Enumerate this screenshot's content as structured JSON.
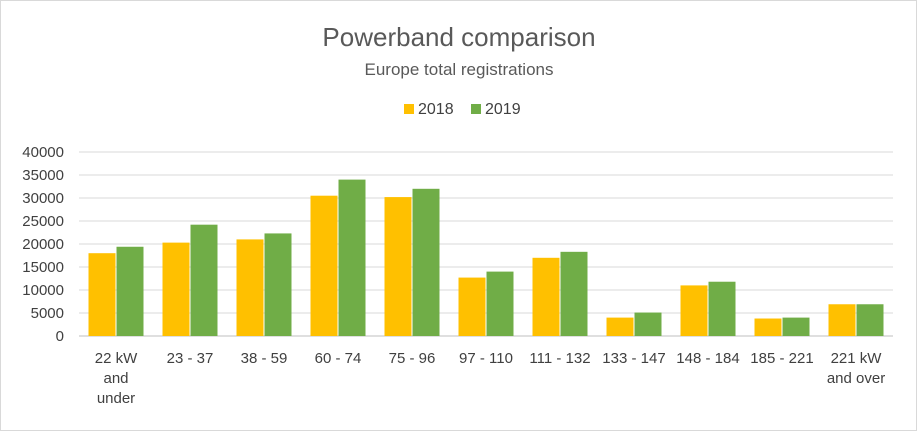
{
  "chart_data": {
    "type": "bar",
    "title": "Powerband comparison",
    "subtitle": "Europe total registrations",
    "xlabel": "",
    "ylabel": "",
    "ylim": [
      0,
      40000
    ],
    "yticks": [
      0,
      5000,
      10000,
      15000,
      20000,
      25000,
      30000,
      35000,
      40000
    ],
    "grid": true,
    "legend_position": "top",
    "categories": [
      [
        "22 kW",
        "and",
        "under"
      ],
      [
        "23 - 37"
      ],
      [
        "38 - 59"
      ],
      [
        "60 - 74"
      ],
      [
        "75 - 96"
      ],
      [
        "97 - 110"
      ],
      [
        "111 - 132"
      ],
      [
        "133 - 147"
      ],
      [
        "148 - 184"
      ],
      [
        "185 - 221"
      ],
      [
        "221 kW",
        "and over"
      ]
    ],
    "series": [
      {
        "name": "2018",
        "color": "#ffc000",
        "values": [
          18000,
          20300,
          21000,
          30500,
          30200,
          12700,
          17000,
          4000,
          11000,
          3800,
          6900
        ]
      },
      {
        "name": "2019",
        "color": "#70ad47",
        "values": [
          19400,
          24200,
          22300,
          34000,
          32000,
          14000,
          18300,
          5100,
          11800,
          4000,
          6900
        ]
      }
    ]
  }
}
